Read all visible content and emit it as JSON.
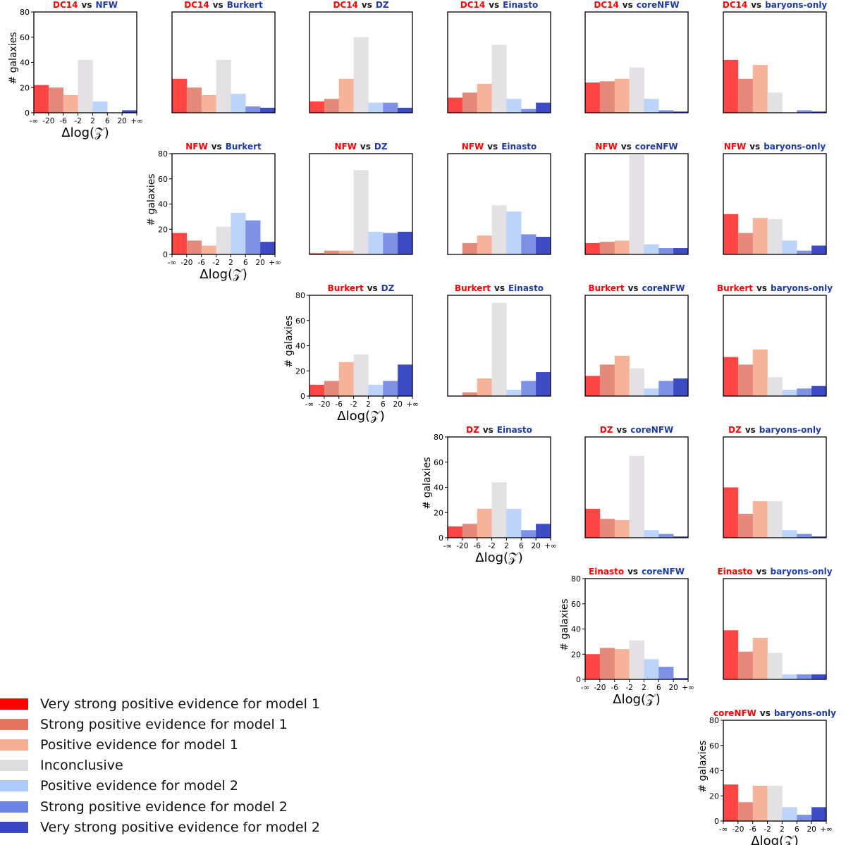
{
  "colors": {
    "model1_title": "#ff0000",
    "model2_title": "#1e3aa8",
    "vs_text": "#1a1a1a",
    "bins": [
      "#ff4444",
      "#e5897a",
      "#f7b39a",
      "#e3e1e3",
      "#bcd3fa",
      "#7d92e4",
      "#3d4bc4"
    ]
  },
  "axis_labels": {
    "ylabel": "# galaxies",
    "xlabel": "Δlog(𝒵)",
    "xticks": [
      "-∞",
      "-20",
      "-6",
      "-2",
      "2",
      "6",
      "20",
      "+∞"
    ],
    "yticks": [
      "0",
      "20",
      "40",
      "60",
      "80"
    ]
  },
  "legend": {
    "items": [
      "Very strong positive evidence for model 1",
      "Strong positive evidence for model 1",
      "Positive evidence for model 1",
      "Inconclusive",
      "Positive evidence for model 2",
      "Strong positive evidence for model 2",
      "Very strong positive evidence for model 2"
    ]
  },
  "chart_data": [
    {
      "type": "bar",
      "model1": "DC14",
      "vs": "vs",
      "model2": "NFW",
      "ylim": [
        0,
        80
      ],
      "values": [
        22,
        20,
        14,
        42,
        9,
        0,
        2
      ],
      "xlabel": "Δlog(𝒵)",
      "ylabel": "# galaxies"
    },
    {
      "type": "bar",
      "model1": "DC14",
      "vs": "vs",
      "model2": "Burkert",
      "ylim": [
        0,
        80
      ],
      "values": [
        27,
        20,
        14,
        42,
        15,
        5,
        4
      ]
    },
    {
      "type": "bar",
      "model1": "DC14",
      "vs": "vs",
      "model2": "DZ",
      "ylim": [
        0,
        80
      ],
      "values": [
        9,
        11,
        27,
        60,
        8,
        8,
        4
      ]
    },
    {
      "type": "bar",
      "model1": "DC14",
      "vs": "vs",
      "model2": "Einasto",
      "ylim": [
        0,
        80
      ],
      "values": [
        12,
        16,
        23,
        54,
        11,
        3,
        8
      ]
    },
    {
      "type": "bar",
      "model1": "DC14",
      "vs": "vs",
      "model2": "coreNFW",
      "ylim": [
        0,
        80
      ],
      "values": [
        24,
        25,
        27,
        36,
        11,
        2,
        1
      ]
    },
    {
      "type": "bar",
      "model1": "DC14",
      "vs": "vs",
      "model2": "baryons-only",
      "ylim": [
        0,
        80
      ],
      "values": [
        42,
        27,
        38,
        16,
        0,
        2,
        1
      ]
    },
    {
      "type": "bar",
      "model1": "NFW",
      "vs": "vs",
      "model2": "Burkert",
      "ylim": [
        0,
        80
      ],
      "values": [
        17,
        11,
        7,
        22,
        33,
        27,
        10
      ],
      "xlabel": "Δlog(𝒵)",
      "ylabel": "# galaxies"
    },
    {
      "type": "bar",
      "model1": "NFW",
      "vs": "vs",
      "model2": "DZ",
      "ylim": [
        0,
        80
      ],
      "values": [
        1,
        3,
        3,
        67,
        18,
        17,
        18
      ]
    },
    {
      "type": "bar",
      "model1": "NFW",
      "vs": "vs",
      "model2": "Einasto",
      "ylim": [
        0,
        80
      ],
      "values": [
        0,
        9,
        15,
        39,
        34,
        16,
        14
      ]
    },
    {
      "type": "bar",
      "model1": "NFW",
      "vs": "vs",
      "model2": "coreNFW",
      "ylim": [
        0,
        80
      ],
      "values": [
        9,
        10,
        11,
        79,
        8,
        5,
        5
      ]
    },
    {
      "type": "bar",
      "model1": "NFW",
      "vs": "vs",
      "model2": "baryons-only",
      "ylim": [
        0,
        80
      ],
      "values": [
        32,
        17,
        29,
        28,
        11,
        3,
        7
      ]
    },
    {
      "type": "bar",
      "model1": "Burkert",
      "vs": "vs",
      "model2": "DZ",
      "ylim": [
        0,
        80
      ],
      "values": [
        9,
        12,
        27,
        33,
        9,
        12,
        25
      ],
      "xlabel": "Δlog(𝒵)",
      "ylabel": "# galaxies"
    },
    {
      "type": "bar",
      "model1": "Burkert",
      "vs": "vs",
      "model2": "Einasto",
      "ylim": [
        0,
        80
      ],
      "values": [
        0,
        3,
        14,
        74,
        5,
        12,
        19
      ]
    },
    {
      "type": "bar",
      "model1": "Burkert",
      "vs": "vs",
      "model2": "coreNFW",
      "ylim": [
        0,
        80
      ],
      "values": [
        16,
        25,
        32,
        22,
        6,
        12,
        14
      ]
    },
    {
      "type": "bar",
      "model1": "Burkert",
      "vs": "vs",
      "model2": "baryons-only",
      "ylim": [
        0,
        80
      ],
      "values": [
        31,
        25,
        37,
        15,
        5,
        6,
        8
      ]
    },
    {
      "type": "bar",
      "model1": "DZ",
      "vs": "vs",
      "model2": "Einasto",
      "ylim": [
        0,
        80
      ],
      "values": [
        9,
        11,
        23,
        44,
        23,
        6,
        11
      ],
      "xlabel": "Δlog(𝒵)",
      "ylabel": "# galaxies"
    },
    {
      "type": "bar",
      "model1": "DZ",
      "vs": "vs",
      "model2": "coreNFW",
      "ylim": [
        0,
        80
      ],
      "values": [
        23,
        15,
        14,
        65,
        6,
        3,
        1
      ]
    },
    {
      "type": "bar",
      "model1": "DZ",
      "vs": "vs",
      "model2": "baryons-only",
      "ylim": [
        0,
        80
      ],
      "values": [
        40,
        19,
        29,
        29,
        6,
        3,
        1
      ]
    },
    {
      "type": "bar",
      "model1": "Einasto",
      "vs": "vs",
      "model2": "coreNFW",
      "ylim": [
        0,
        80
      ],
      "values": [
        20,
        25,
        24,
        31,
        16,
        10,
        1
      ],
      "xlabel": "Δlog(𝒵)",
      "ylabel": "# galaxies"
    },
    {
      "type": "bar",
      "model1": "Einasto",
      "vs": "vs",
      "model2": "baryons-only",
      "ylim": [
        0,
        80
      ],
      "values": [
        39,
        22,
        33,
        21,
        4,
        4,
        4
      ]
    },
    {
      "type": "bar",
      "model1": "coreNFW",
      "vs": "vs",
      "model2": "baryons-only",
      "ylim": [
        0,
        80
      ],
      "values": [
        29,
        15,
        28,
        28,
        11,
        5,
        11
      ],
      "xlabel": "Δlog(𝒵)",
      "ylabel": "# galaxies"
    }
  ]
}
